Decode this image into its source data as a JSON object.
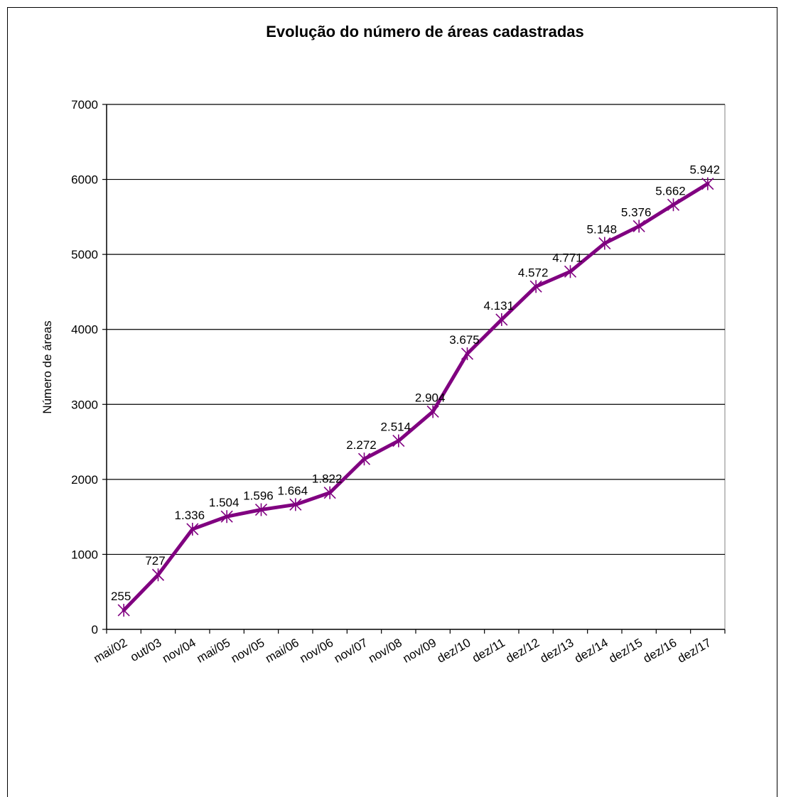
{
  "chart_data": {
    "type": "line",
    "title": "Evolução do número de áreas cadastradas",
    "ylabel": "Número de áreas",
    "xlabel": "",
    "ylim": [
      0,
      7000
    ],
    "yticks": [
      0,
      1000,
      2000,
      3000,
      4000,
      5000,
      6000,
      7000
    ],
    "grid": true,
    "categories": [
      "mai/02",
      "out/03",
      "nov/04",
      "mai/05",
      "nov/05",
      "mai/06",
      "nov/06",
      "nov/07",
      "nov/08",
      "nov/09",
      "dez/10",
      "dez/11",
      "dez/12",
      "dez/13",
      "dez/14",
      "dez/15",
      "dez/16",
      "dez/17"
    ],
    "series": [
      {
        "values": [
          255,
          727,
          1336,
          1504,
          1596,
          1664,
          1822,
          2272,
          2514,
          2904,
          3675,
          4131,
          4572,
          4771,
          5148,
          5376,
          5662,
          5942
        ],
        "labels": [
          "255",
          "727",
          "1.336",
          "1.504",
          "1.596",
          "1.664",
          "1.822",
          "2.272",
          "2.514",
          "2.904",
          "3.675",
          "4.131",
          "4.572",
          "4.771",
          "5.148",
          "5.376",
          "5.662",
          "5.942"
        ],
        "color": "#800080",
        "marker": "star"
      }
    ]
  }
}
